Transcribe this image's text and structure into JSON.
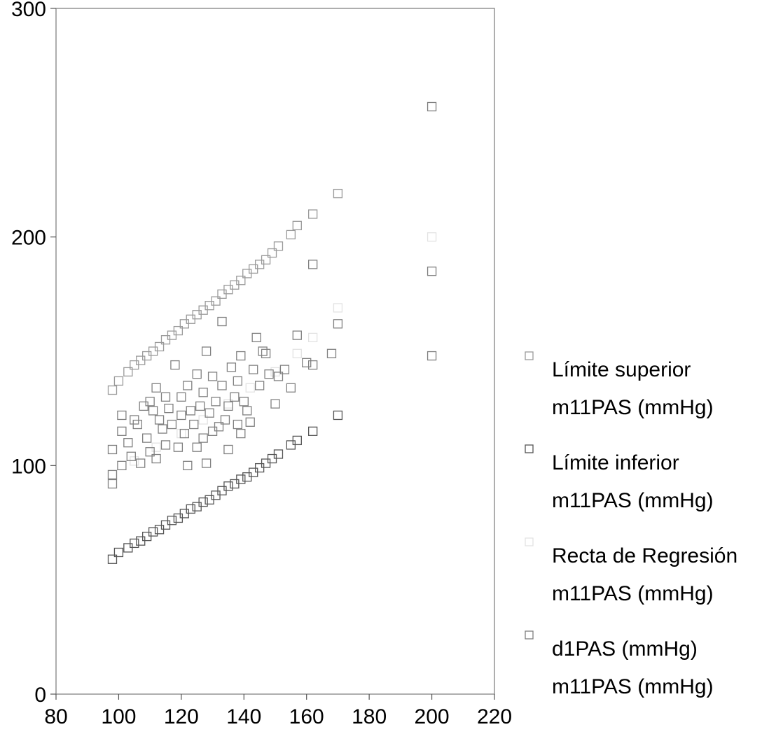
{
  "chart_data": {
    "type": "scatter",
    "title": "",
    "xlabel": "",
    "ylabel": "",
    "xlim": [
      80,
      220
    ],
    "ylim": [
      0,
      300
    ],
    "xticks": [
      80,
      100,
      120,
      140,
      160,
      180,
      200,
      220
    ],
    "yticks": [
      0,
      100,
      200,
      300
    ],
    "grid": false,
    "legend_placement": "right",
    "series": [
      {
        "name": "Límite superior m11PAS (mmHg)",
        "legend_lines": [
          "Límite superior",
          "m11PAS (mmHg)"
        ],
        "color": "#9a9a9a",
        "x": [
          98,
          100,
          103,
          105,
          107,
          109,
          111,
          113,
          115,
          117,
          119,
          121,
          123,
          125,
          127,
          129,
          131,
          133,
          135,
          137,
          139,
          141,
          143,
          145,
          147,
          149,
          151,
          155,
          157,
          162,
          170
        ],
        "y": [
          133,
          137,
          141,
          144,
          146,
          148,
          150,
          152,
          155,
          157,
          159,
          162,
          164,
          166,
          168,
          170,
          172,
          175,
          177,
          179,
          181,
          184,
          186,
          188,
          190,
          193,
          196,
          201,
          205,
          210,
          219
        ]
      },
      {
        "name": "Límite inferior m11PAS (mmHg)",
        "legend_lines": [
          "Límite inferior",
          "m11PAS (mmHg)"
        ],
        "color": "#555555",
        "x": [
          98,
          100,
          103,
          105,
          107,
          109,
          111,
          113,
          115,
          117,
          119,
          121,
          123,
          125,
          127,
          129,
          131,
          133,
          135,
          137,
          139,
          141,
          143,
          145,
          147,
          149,
          151,
          155,
          157,
          162,
          170
        ],
        "y": [
          59,
          62,
          64,
          66,
          67,
          69,
          71,
          72,
          74,
          76,
          77,
          79,
          81,
          82,
          84,
          85,
          87,
          89,
          91,
          92,
          94,
          95,
          97,
          99,
          101,
          103,
          105,
          109,
          111,
          115,
          122
        ]
      },
      {
        "name": "Recta de Regresión m11PAS (mmHg)",
        "legend_lines": [
          "Recta de Regresión",
          "m11PAS (mmHg)"
        ],
        "color": "#e3e3e3",
        "x": [
          98,
          105,
          112,
          120,
          127,
          135,
          142,
          150,
          157,
          162,
          170,
          200
        ],
        "y": [
          96,
          102,
          108,
          114,
          120,
          127,
          134,
          141,
          149,
          156,
          169,
          200
        ]
      },
      {
        "name": "d1PAS (mmHg) m11PAS (mmHg)",
        "legend_lines": [
          "d1PAS (mmHg)",
          "m11PAS (mmHg)"
        ],
        "color": "#808080",
        "x": [
          98,
          98,
          98,
          101,
          101,
          101,
          103,
          104,
          105,
          106,
          107,
          108,
          109,
          110,
          110,
          111,
          112,
          112,
          113,
          114,
          115,
          115,
          116,
          117,
          118,
          119,
          120,
          120,
          121,
          122,
          122,
          123,
          124,
          125,
          125,
          126,
          127,
          127,
          128,
          128,
          129,
          130,
          130,
          131,
          132,
          133,
          133,
          134,
          135,
          135,
          136,
          137,
          138,
          138,
          139,
          139,
          140,
          141,
          142,
          143,
          144,
          145,
          146,
          147,
          148,
          150,
          151,
          153,
          155,
          157,
          160,
          162,
          162,
          168,
          170,
          200,
          200
        ],
        "y": [
          92,
          96,
          107,
          115,
          122,
          100,
          110,
          104,
          120,
          118,
          101,
          126,
          112,
          128,
          106,
          124,
          134,
          103,
          120,
          116,
          130,
          109,
          125,
          118,
          144,
          108,
          122,
          130,
          114,
          100,
          135,
          124,
          118,
          140,
          108,
          126,
          112,
          132,
          150,
          101,
          123,
          139,
          115,
          128,
          117,
          135,
          163,
          120,
          126,
          107,
          143,
          130,
          118,
          137,
          148,
          114,
          128,
          124,
          119,
          142,
          156,
          135,
          150,
          149,
          140,
          127,
          139,
          142,
          134,
          157,
          145,
          144,
          188,
          149,
          162,
          148,
          185
        ]
      }
    ],
    "outliers": [
      {
        "series": 3,
        "x": 200,
        "y": 257
      }
    ]
  }
}
